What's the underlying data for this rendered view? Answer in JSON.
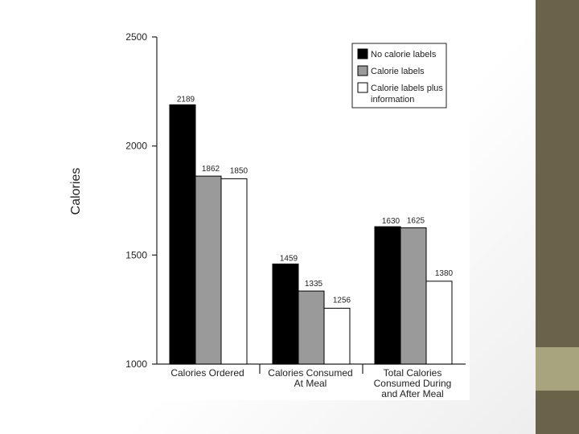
{
  "chart_data": {
    "type": "bar",
    "ylabel": "Calories",
    "ylim": [
      1000,
      2500
    ],
    "yticks": [
      1000,
      1500,
      2000,
      2500
    ],
    "grid": false,
    "legend_position": "top-right",
    "categories": [
      [
        "Calories Ordered"
      ],
      [
        "Calories Consumed",
        "At Meal"
      ],
      [
        "Total Calories",
        "Consumed During",
        "and After Meal"
      ]
    ],
    "series": [
      {
        "name": "No calorie labels",
        "color": "#000000",
        "values": [
          2189,
          1459,
          1630
        ]
      },
      {
        "name": "Calorie labels",
        "color": "#9a9a9a",
        "values": [
          1862,
          1335,
          1625
        ]
      },
      {
        "name": "Calorie labels plus information",
        "legend_lines": [
          "Calorie labels plus",
          "information"
        ],
        "color": "#ffffff",
        "values": [
          1850,
          1256,
          1380
        ]
      }
    ],
    "value_labels": [
      [
        "2189",
        "1459",
        "1630"
      ],
      [
        "1862",
        "1335",
        "1625"
      ],
      [
        "1850",
        "1256",
        "1380"
      ]
    ]
  }
}
